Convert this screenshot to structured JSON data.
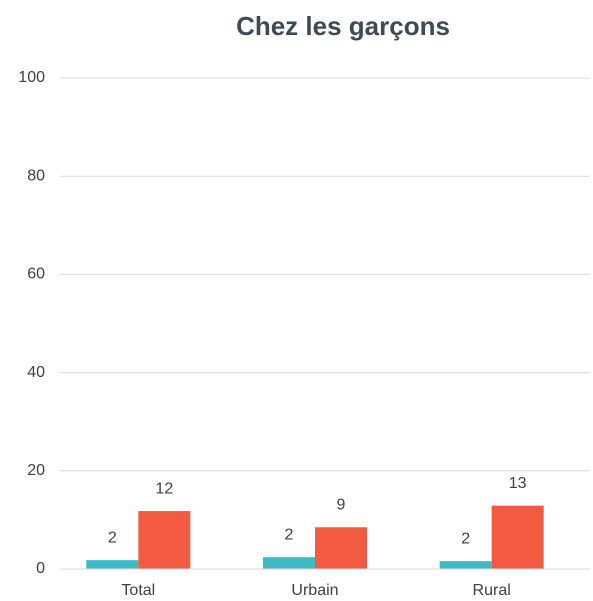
{
  "chart_data": {
    "type": "bar",
    "title": "Chez les garçons",
    "categories": [
      "Total",
      "Urbain",
      "Rural"
    ],
    "series": [
      {
        "color": "#3fb9c6",
        "values": [
          1.8,
          2.4,
          1.6
        ],
        "value_labels": [
          "2",
          "2",
          "2"
        ]
      },
      {
        "color": "#f25a42",
        "values": [
          11.8,
          8.5,
          12.9
        ],
        "value_labels": [
          "12",
          "9",
          "13"
        ]
      }
    ],
    "ylim": [
      0,
      100
    ],
    "yticks": [
      0,
      20,
      40,
      60,
      80,
      100
    ],
    "grid": true
  }
}
